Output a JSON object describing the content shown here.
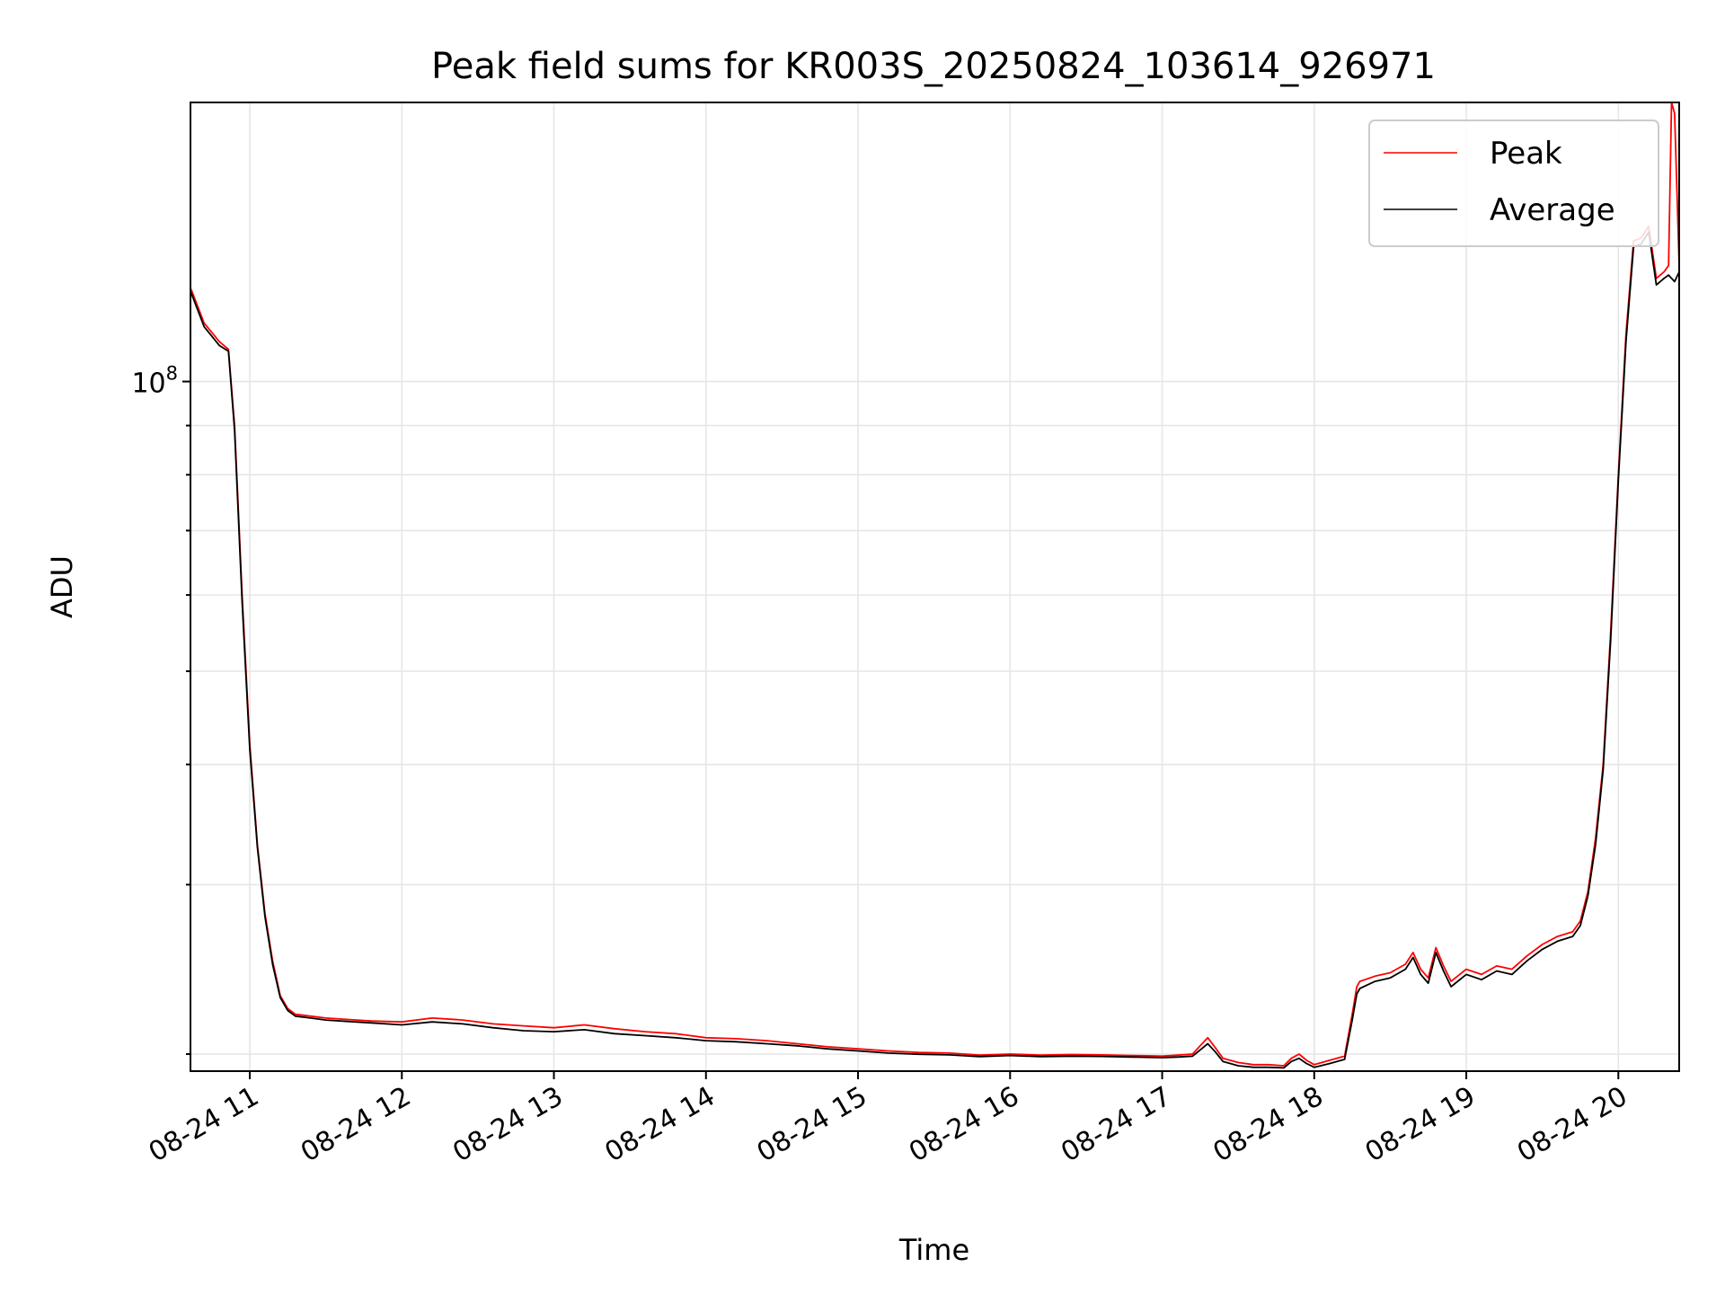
{
  "chart_data": {
    "type": "line",
    "title": "Peak field sums for KR003S_20250824_103614_926971",
    "xlabel": "Time",
    "ylabel": "ADU",
    "yscale": "log",
    "xlim": [
      10.61,
      20.4
    ],
    "ylim": [
      19200000,
      195000000
    ],
    "x_ticks": [
      {
        "value": 11,
        "label": "08-24 11"
      },
      {
        "value": 12,
        "label": "08-24 12"
      },
      {
        "value": 13,
        "label": "08-24 13"
      },
      {
        "value": 14,
        "label": "08-24 14"
      },
      {
        "value": 15,
        "label": "08-24 15"
      },
      {
        "value": 16,
        "label": "08-24 16"
      },
      {
        "value": 17,
        "label": "08-24 17"
      },
      {
        "value": 18,
        "label": "08-24 18"
      },
      {
        "value": 19,
        "label": "08-24 19"
      },
      {
        "value": 20,
        "label": "08-24 20"
      }
    ],
    "y_major_ticks": [
      {
        "value": 100000000,
        "base": "10",
        "exp": "8"
      }
    ],
    "y_minor_ticks": [
      20000000,
      30000000,
      40000000,
      50000000,
      60000000,
      70000000,
      80000000,
      90000000
    ],
    "grid": true,
    "legend_position": "top-right",
    "series": [
      {
        "name": "Peak",
        "color": "#ff0000",
        "x": [
          10.61,
          10.62,
          10.7,
          10.8,
          10.86,
          10.9,
          10.95,
          11.0,
          11.05,
          11.1,
          11.15,
          11.2,
          11.25,
          11.3,
          11.4,
          11.5,
          11.6,
          11.8,
          12.0,
          12.2,
          12.4,
          12.6,
          12.8,
          13.0,
          13.2,
          13.4,
          13.6,
          13.8,
          14.0,
          14.2,
          14.4,
          14.6,
          14.8,
          15.0,
          15.2,
          15.4,
          15.6,
          15.8,
          16.0,
          16.2,
          16.4,
          16.6,
          16.8,
          17.0,
          17.1,
          17.2,
          17.25,
          17.3,
          17.35,
          17.4,
          17.5,
          17.6,
          17.7,
          17.8,
          17.85,
          17.9,
          17.95,
          18.0,
          18.1,
          18.2,
          18.25,
          18.28,
          18.3,
          18.4,
          18.5,
          18.6,
          18.65,
          18.7,
          18.75,
          18.8,
          18.85,
          18.9,
          19.0,
          19.1,
          19.2,
          19.3,
          19.4,
          19.5,
          19.6,
          19.7,
          19.75,
          19.8,
          19.85,
          19.9,
          19.95,
          20.0,
          20.05,
          20.1,
          20.15,
          20.2,
          20.25,
          20.3,
          20.33,
          20.35,
          20.37,
          20.4
        ],
        "y": [
          125000000,
          124000000,
          115000000,
          110000000,
          108000000,
          90000000,
          60000000,
          42000000,
          33000000,
          28000000,
          25000000,
          23000000,
          22300000,
          22000000,
          21900000,
          21800000,
          21750000,
          21650000,
          21600000,
          21800000,
          21700000,
          21500000,
          21400000,
          21300000,
          21450000,
          21250000,
          21100000,
          21000000,
          20800000,
          20750000,
          20650000,
          20500000,
          20350000,
          20250000,
          20150000,
          20080000,
          20050000,
          19950000,
          20000000,
          19950000,
          19980000,
          19960000,
          19930000,
          19900000,
          19950000,
          20000000,
          20400000,
          20800000,
          20300000,
          19800000,
          19600000,
          19500000,
          19500000,
          19450000,
          19800000,
          20000000,
          19700000,
          19500000,
          19700000,
          19900000,
          22000000,
          23500000,
          23800000,
          24100000,
          24300000,
          24800000,
          25500000,
          24500000,
          24000000,
          25800000,
          24700000,
          23800000,
          24500000,
          24200000,
          24700000,
          24500000,
          25300000,
          26000000,
          26500000,
          26800000,
          27500000,
          29500000,
          33500000,
          40000000,
          55000000,
          80000000,
          112000000,
          140000000,
          141000000,
          145000000,
          128000000,
          130000000,
          132000000,
          195000000,
          190000000,
          132000000
        ]
      },
      {
        "name": "Average",
        "color": "#000000",
        "x": [
          10.61,
          10.62,
          10.7,
          10.8,
          10.86,
          10.9,
          10.95,
          11.0,
          11.05,
          11.1,
          11.15,
          11.2,
          11.25,
          11.3,
          11.4,
          11.5,
          11.6,
          11.8,
          12.0,
          12.2,
          12.4,
          12.6,
          12.8,
          13.0,
          13.2,
          13.4,
          13.6,
          13.8,
          14.0,
          14.2,
          14.4,
          14.6,
          14.8,
          15.0,
          15.2,
          15.4,
          15.6,
          15.8,
          16.0,
          16.2,
          16.4,
          16.6,
          16.8,
          17.0,
          17.1,
          17.2,
          17.25,
          17.3,
          17.35,
          17.4,
          17.5,
          17.6,
          17.7,
          17.8,
          17.85,
          17.9,
          17.95,
          18.0,
          18.1,
          18.2,
          18.25,
          18.28,
          18.3,
          18.4,
          18.5,
          18.6,
          18.65,
          18.7,
          18.75,
          18.8,
          18.85,
          18.9,
          19.0,
          19.1,
          19.2,
          19.3,
          19.4,
          19.5,
          19.6,
          19.7,
          19.75,
          19.8,
          19.85,
          19.9,
          19.95,
          20.0,
          20.05,
          20.1,
          20.15,
          20.2,
          20.25,
          20.3,
          20.33,
          20.35,
          20.37,
          20.4
        ],
        "y": [
          124000000,
          123000000,
          114000000,
          109000000,
          107500000,
          89000000,
          59000000,
          41500000,
          32800000,
          27800000,
          24800000,
          22900000,
          22200000,
          21900000,
          21800000,
          21700000,
          21650000,
          21550000,
          21450000,
          21600000,
          21500000,
          21300000,
          21150000,
          21100000,
          21200000,
          21000000,
          20900000,
          20800000,
          20650000,
          20600000,
          20500000,
          20400000,
          20250000,
          20150000,
          20050000,
          19990000,
          19960000,
          19880000,
          19930000,
          19880000,
          19900000,
          19890000,
          19860000,
          19830000,
          19860000,
          19900000,
          20200000,
          20500000,
          20100000,
          19650000,
          19450000,
          19380000,
          19380000,
          19350000,
          19650000,
          19800000,
          19550000,
          19380000,
          19550000,
          19750000,
          21700000,
          23100000,
          23400000,
          23800000,
          24000000,
          24500000,
          25200000,
          24200000,
          23700000,
          25500000,
          24400000,
          23500000,
          24200000,
          23900000,
          24400000,
          24200000,
          25000000,
          25700000,
          26200000,
          26500000,
          27200000,
          29200000,
          33000000,
          39500000,
          54000000,
          79000000,
          110000000,
          138000000,
          139000000,
          143000000,
          126000000,
          128000000,
          129000000,
          128000000,
          127000000,
          130000000
        ]
      }
    ]
  }
}
